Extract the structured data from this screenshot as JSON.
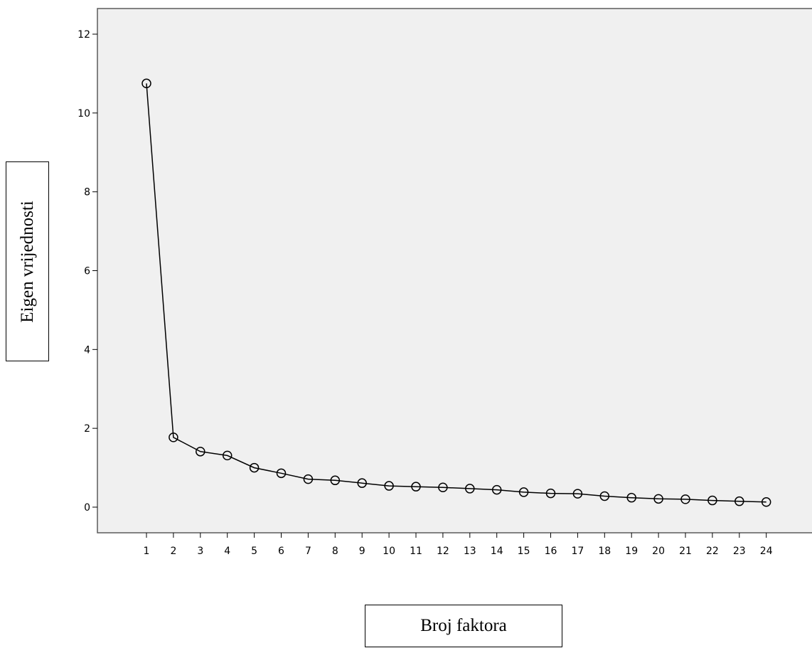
{
  "chart_data": {
    "type": "line",
    "title": "",
    "xlabel": "Broj faktora",
    "ylabel": "Eigen vrijednosti",
    "ylim": [
      -0.65,
      12.65
    ],
    "yticks": [
      "0",
      "2",
      "4",
      "6",
      "8",
      "10",
      "12"
    ],
    "categories": [
      "1",
      "2",
      "3",
      "4",
      "5",
      "6",
      "7",
      "8",
      "9",
      "10",
      "11",
      "12",
      "13",
      "14",
      "15",
      "16",
      "17",
      "18",
      "19",
      "20",
      "21",
      "22",
      "23",
      "24"
    ],
    "series": [
      {
        "values": [
          10.75,
          1.77,
          1.41,
          1.31,
          1.0,
          0.86,
          0.71,
          0.68,
          0.61,
          0.54,
          0.52,
          0.5,
          0.47,
          0.44,
          0.38,
          0.35,
          0.34,
          0.28,
          0.24,
          0.21,
          0.2,
          0.17,
          0.15,
          0.13
        ]
      }
    ],
    "marker": "open-circle",
    "grid": false,
    "colors": {
      "plot_background": "#f0f0f0",
      "line": "#000000",
      "frame": "#5a5a5a"
    }
  }
}
